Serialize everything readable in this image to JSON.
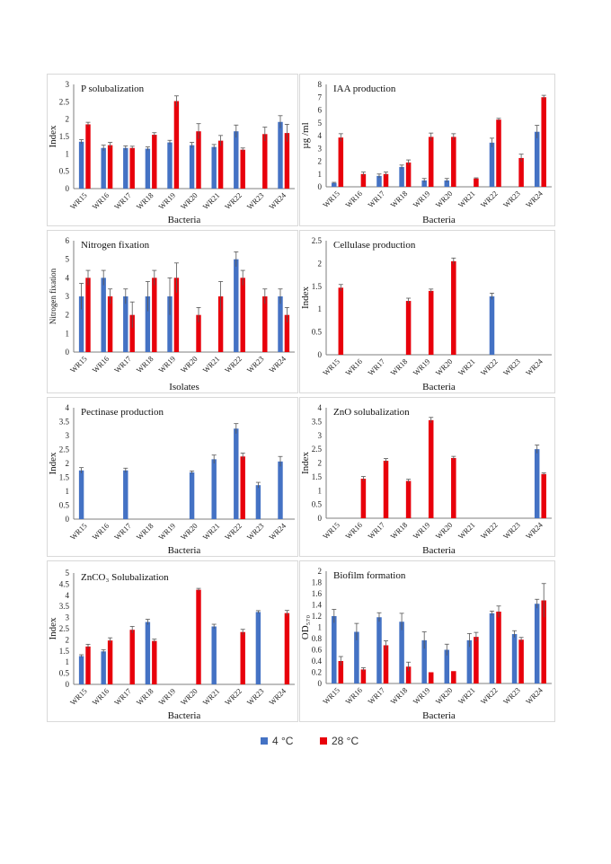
{
  "legend": [
    {
      "label": "4 °C",
      "color": "#4472C4"
    },
    {
      "label": "28 °C",
      "color": "#E8000B"
    }
  ],
  "chart_data": [
    {
      "type": "bar",
      "title": "P solubalization",
      "ylabel": "Index",
      "xlabel": "Bacteria",
      "ylim": [
        0,
        3
      ],
      "yticks": [
        0,
        0.5,
        1,
        1.5,
        2,
        2.5,
        3
      ],
      "categories": [
        "WR15",
        "WR16",
        "WR17",
        "WR18",
        "WR19",
        "WR20",
        "WR21",
        "WR22",
        "WR23",
        "WR24"
      ],
      "series": [
        {
          "name": "4 °C",
          "values": [
            1.35,
            1.17,
            1.17,
            1.15,
            1.33,
            1.25,
            1.2,
            1.65,
            0,
            1.92
          ],
          "errors": [
            0.06,
            0.08,
            0.06,
            0.05,
            0.06,
            0.08,
            0.07,
            0.18,
            0,
            0.18
          ]
        },
        {
          "name": "28 °C",
          "values": [
            1.85,
            1.25,
            1.17,
            1.55,
            2.52,
            1.65,
            1.38,
            1.12,
            1.57,
            1.6
          ],
          "errors": [
            0.06,
            0.08,
            0.05,
            0.06,
            0.15,
            0.22,
            0.15,
            0.05,
            0.2,
            0.25
          ]
        }
      ]
    },
    {
      "type": "bar",
      "title": "IAA production",
      "ylabel": "µg /ml",
      "xlabel": "Bacteria",
      "ylim": [
        0,
        8
      ],
      "yticks": [
        0,
        1,
        2,
        3,
        4,
        5,
        6,
        7,
        8
      ],
      "categories": [
        "WR15",
        "WR16",
        "WR17",
        "WR18",
        "WR19",
        "WR20",
        "WR21",
        "WR22",
        "WR23",
        "WR24"
      ],
      "series": [
        {
          "name": "4 °C",
          "values": [
            0.3,
            0,
            0.85,
            1.55,
            0.5,
            0.5,
            0,
            3.45,
            0,
            4.3
          ],
          "errors": [
            0.05,
            0,
            0.15,
            0.15,
            0.15,
            0.15,
            0,
            0.35,
            0,
            0.5
          ]
        },
        {
          "name": "28 °C",
          "values": [
            3.85,
            1.0,
            1.0,
            1.9,
            3.9,
            3.9,
            0.65,
            5.25,
            2.25,
            7.0
          ],
          "errors": [
            0.3,
            0.15,
            0.15,
            0.2,
            0.3,
            0.25,
            0.05,
            0.1,
            0.3,
            0.15
          ]
        }
      ]
    },
    {
      "type": "bar",
      "title": "Nitrogen fixation",
      "ylabel": "Nitrogen fixation",
      "xlabel": "Isolates",
      "ylim": [
        0,
        6
      ],
      "yticks": [
        0,
        1,
        2,
        3,
        4,
        5,
        6
      ],
      "categories": [
        "WR15",
        "WR16",
        "WR17",
        "WR18",
        "WR19",
        "WR20",
        "WR21",
        "WR22",
        "WR23",
        "WR24"
      ],
      "series": [
        {
          "name": "4 °C",
          "values": [
            3,
            4,
            3,
            3,
            3,
            0,
            0,
            5,
            0,
            3
          ],
          "errors": [
            0.7,
            0.4,
            0.4,
            0.8,
            1.0,
            0,
            0,
            0.4,
            0,
            0.4
          ]
        },
        {
          "name": "28 °C",
          "values": [
            4,
            3,
            2,
            4,
            4,
            2,
            3,
            4,
            3,
            2
          ],
          "errors": [
            0.4,
            0.4,
            0.7,
            0.4,
            0.8,
            0.4,
            0.8,
            0.4,
            0.4,
            0.4
          ]
        }
      ]
    },
    {
      "type": "bar",
      "title": "Cellulase production",
      "ylabel": "Index",
      "xlabel": "Bacteria",
      "ylim": [
        0,
        2.5
      ],
      "yticks": [
        0,
        0.5,
        1,
        1.5,
        2,
        2.5
      ],
      "categories": [
        "WR15",
        "WR16",
        "WR17",
        "WR18",
        "WR19",
        "WR20",
        "WR21",
        "WR22",
        "WR23",
        "WR24"
      ],
      "series": [
        {
          "name": "4 °C",
          "values": [
            0,
            0,
            0,
            0,
            0,
            0,
            0,
            1.28,
            0,
            0
          ],
          "errors": [
            0,
            0,
            0,
            0,
            0,
            0,
            0,
            0.07,
            0,
            0
          ]
        },
        {
          "name": "28 °C",
          "values": [
            1.47,
            0,
            0,
            1.18,
            1.4,
            2.05,
            0,
            0,
            0,
            0
          ],
          "errors": [
            0.07,
            0,
            0,
            0.06,
            0.04,
            0.07,
            0,
            0,
            0,
            0
          ]
        }
      ]
    },
    {
      "type": "bar",
      "title": "Pectinase production",
      "ylabel": "Index",
      "xlabel": "Bacteria",
      "ylim": [
        0,
        4
      ],
      "yticks": [
        0,
        0.5,
        1,
        1.5,
        2,
        2.5,
        3,
        3.5,
        4
      ],
      "categories": [
        "WR15",
        "WR16",
        "WR17",
        "WR18",
        "WR19",
        "WR20",
        "WR21",
        "WR22",
        "WR23",
        "WR24"
      ],
      "series": [
        {
          "name": "4 °C",
          "values": [
            1.75,
            0,
            1.75,
            0,
            0,
            1.68,
            2.15,
            3.25,
            1.22,
            2.07
          ],
          "errors": [
            0.1,
            0,
            0.08,
            0,
            0,
            0.05,
            0.15,
            0.18,
            0.1,
            0.18
          ]
        },
        {
          "name": "28 °C",
          "values": [
            0,
            0,
            0,
            0,
            0,
            0,
            0,
            2.25,
            0,
            0
          ],
          "errors": [
            0,
            0,
            0,
            0,
            0,
            0,
            0,
            0.12,
            0,
            0
          ]
        }
      ]
    },
    {
      "type": "bar",
      "title": "ZnO solubalization",
      "ylabel": "Index",
      "xlabel": "Bacteria",
      "ylim": [
        0,
        4
      ],
      "yticks": [
        0,
        0.5,
        1,
        1.5,
        2,
        2.5,
        3,
        3.5,
        4
      ],
      "categories": [
        "WR15",
        "WR16",
        "WR17",
        "WR18",
        "WR19",
        "WR20",
        "WR21",
        "WR22",
        "WR23",
        "WR24"
      ],
      "series": [
        {
          "name": "4 °C",
          "values": [
            0,
            0,
            0,
            0,
            0,
            0,
            0,
            0,
            0,
            2.5
          ],
          "errors": [
            0,
            0,
            0,
            0,
            0,
            0,
            0,
            0,
            0,
            0.15
          ]
        },
        {
          "name": "28 °C",
          "values": [
            0,
            1.43,
            2.08,
            1.35,
            3.55,
            2.18,
            0,
            0,
            0,
            1.6
          ],
          "errors": [
            0,
            0.08,
            0.08,
            0.06,
            0.1,
            0.06,
            0,
            0,
            0,
            0.04
          ]
        }
      ]
    },
    {
      "type": "bar",
      "title": "ZnCO₃ Solubalization",
      "ylabel": "Index",
      "xlabel": "Bacteria",
      "ylim": [
        0,
        5
      ],
      "yticks": [
        0,
        0.5,
        1,
        1.5,
        2,
        2.5,
        3,
        3.5,
        4,
        4.5,
        5
      ],
      "categories": [
        "WR15",
        "WR16",
        "WR17",
        "WR18",
        "WR19",
        "WR20",
        "WR21",
        "WR22",
        "WR23",
        "WR24"
      ],
      "series": [
        {
          "name": "4 °C",
          "values": [
            1.27,
            1.48,
            0,
            2.8,
            0,
            0,
            2.6,
            0,
            3.25,
            0
          ],
          "errors": [
            0.06,
            0.08,
            0,
            0.12,
            0,
            0,
            0.1,
            0,
            0.06,
            0
          ]
        },
        {
          "name": "28 °C",
          "values": [
            1.7,
            1.97,
            2.45,
            1.95,
            0,
            4.25,
            0,
            2.35,
            0,
            3.2
          ],
          "errors": [
            0.1,
            0.12,
            0.15,
            0.08,
            0,
            0.06,
            0,
            0.12,
            0,
            0.12
          ]
        }
      ]
    },
    {
      "type": "bar",
      "title": "Biofilm formation",
      "ylabel": "OD₅₇₀",
      "xlabel": "Bacteria",
      "ylim": [
        0,
        2
      ],
      "yticks": [
        0,
        0.2,
        0.4,
        0.6,
        0.8,
        1,
        1.2,
        1.4,
        1.6,
        1.8,
        2
      ],
      "categories": [
        "WR15",
        "WR16",
        "WR17",
        "WR18",
        "WR19",
        "WR20",
        "WR21",
        "WR22",
        "WR23",
        "WR24"
      ],
      "series": [
        {
          "name": "4 °C",
          "values": [
            1.2,
            0.92,
            1.18,
            1.1,
            0.77,
            0.6,
            0.77,
            1.25,
            0.88,
            1.42
          ],
          "errors": [
            0.12,
            0.15,
            0.08,
            0.15,
            0.15,
            0.1,
            0.12,
            0.04,
            0.06,
            0.08
          ]
        },
        {
          "name": "28 °C",
          "values": [
            0.4,
            0.25,
            0.68,
            0.3,
            0.2,
            0.22,
            0.83,
            1.28,
            0.78,
            1.48
          ],
          "errors": [
            0.08,
            0.03,
            0.08,
            0.08,
            0,
            0,
            0.08,
            0.1,
            0.04,
            0.3
          ]
        }
      ]
    }
  ]
}
